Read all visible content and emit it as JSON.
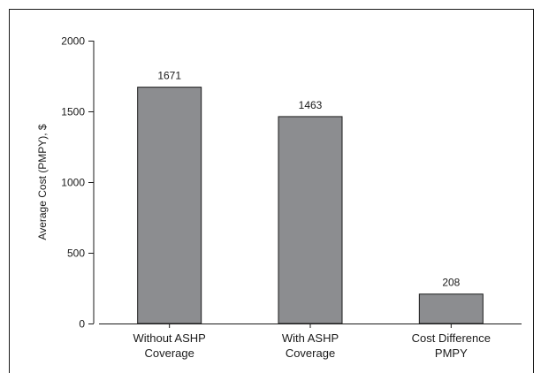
{
  "chart_data": {
    "type": "bar",
    "title": "",
    "xlabel": "",
    "ylabel": "Average Cost (PMPY), $",
    "ylim": [
      0,
      2000
    ],
    "yticks": [
      0,
      500,
      1000,
      1500,
      2000
    ],
    "categories": [
      [
        "Without ASHP",
        "Coverage"
      ],
      [
        "With ASHP",
        "Coverage"
      ],
      [
        "Cost Difference",
        "PMPY"
      ]
    ],
    "values": [
      1671,
      1463,
      208
    ],
    "data_labels": [
      "1671",
      "1463",
      "208"
    ],
    "bar_color": "#8c8d90",
    "bar_edge_color": "#1a1a1a",
    "grid": false,
    "legend": "none"
  }
}
